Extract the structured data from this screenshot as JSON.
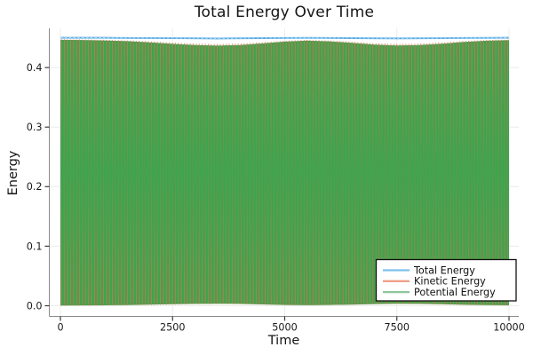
{
  "chart_data": {
    "type": "line",
    "title": "Total Energy Over Time",
    "xlabel": "Time",
    "ylabel": "Energy",
    "xlim": [
      0,
      10000
    ],
    "ylim": [
      0.0,
      0.465
    ],
    "x_ticks": [
      0,
      2500,
      5000,
      7500,
      10000
    ],
    "y_ticks": [
      0.0,
      0.1,
      0.2,
      0.3,
      0.4
    ],
    "grid": true,
    "grid_color": "#ececec",
    "axis_color": "#8a8a8a",
    "tick_color": "#3a3a3a",
    "tick_label_color": "#1a1a1a",
    "envelope_x": [
      0,
      500,
      1000,
      1500,
      2000,
      2500,
      3000,
      3500,
      4000,
      4500,
      5000,
      5500,
      6000,
      6500,
      7000,
      7500,
      8000,
      8500,
      9000,
      9500,
      10000
    ],
    "series": [
      {
        "name": "Total Energy",
        "color": "#53A9E4",
        "highlight_color": "#B4DBF4",
        "legend_color": "#7EC0EC",
        "style": "line",
        "y": [
          0.45,
          0.45,
          0.4499,
          0.4497,
          0.4495,
          0.4492,
          0.449,
          0.4488,
          0.449,
          0.4493,
          0.4496,
          0.4498,
          0.4497,
          0.4494,
          0.449,
          0.4489,
          0.449,
          0.4492,
          0.4496,
          0.4498,
          0.4499
        ]
      },
      {
        "name": "Kinetic Energy",
        "color": "#E0714E",
        "legend_color": "#F0A18C",
        "style": "fast_oscillation",
        "note": "oscillates rapidly between ~0 and the envelope; renders as aliased vertical stripes",
        "envelope_max": [
          0.4465,
          0.4462,
          0.4455,
          0.4442,
          0.4422,
          0.4398,
          0.4378,
          0.4368,
          0.4378,
          0.4405,
          0.4435,
          0.4452,
          0.444,
          0.4415,
          0.4385,
          0.437,
          0.4378,
          0.44,
          0.443,
          0.445,
          0.446
        ],
        "envelope_min": [
          0.0005,
          0.0006,
          0.0008,
          0.0012,
          0.0018,
          0.0025,
          0.0031,
          0.0034,
          0.0031,
          0.0023,
          0.0014,
          0.0009,
          0.0013,
          0.002,
          0.0029,
          0.0034,
          0.0031,
          0.0025,
          0.0016,
          0.001,
          0.0007
        ]
      },
      {
        "name": "Potential Energy",
        "color": "#3EA44E",
        "legend_color": "#8CC79A",
        "style": "fast_oscillation",
        "note": "oscillates rapidly in antiphase with kinetic energy; fills region as dense green",
        "envelope_max": [
          0.4465,
          0.4462,
          0.4455,
          0.4442,
          0.4422,
          0.4398,
          0.4378,
          0.4368,
          0.4378,
          0.4405,
          0.4435,
          0.4452,
          0.444,
          0.4415,
          0.4385,
          0.437,
          0.4378,
          0.44,
          0.443,
          0.445,
          0.446
        ],
        "envelope_min": [
          0.0005,
          0.0006,
          0.0008,
          0.0012,
          0.0018,
          0.0025,
          0.0031,
          0.0034,
          0.0031,
          0.0023,
          0.0014,
          0.0009,
          0.0013,
          0.002,
          0.0029,
          0.0034,
          0.0031,
          0.0025,
          0.0016,
          0.001,
          0.0007
        ]
      }
    ],
    "legend": {
      "position": "bottom-right",
      "background": "#ffffff",
      "border_color": "#111111",
      "entries": [
        "Total Energy",
        "Kinetic Energy",
        "Potential Energy"
      ]
    }
  }
}
